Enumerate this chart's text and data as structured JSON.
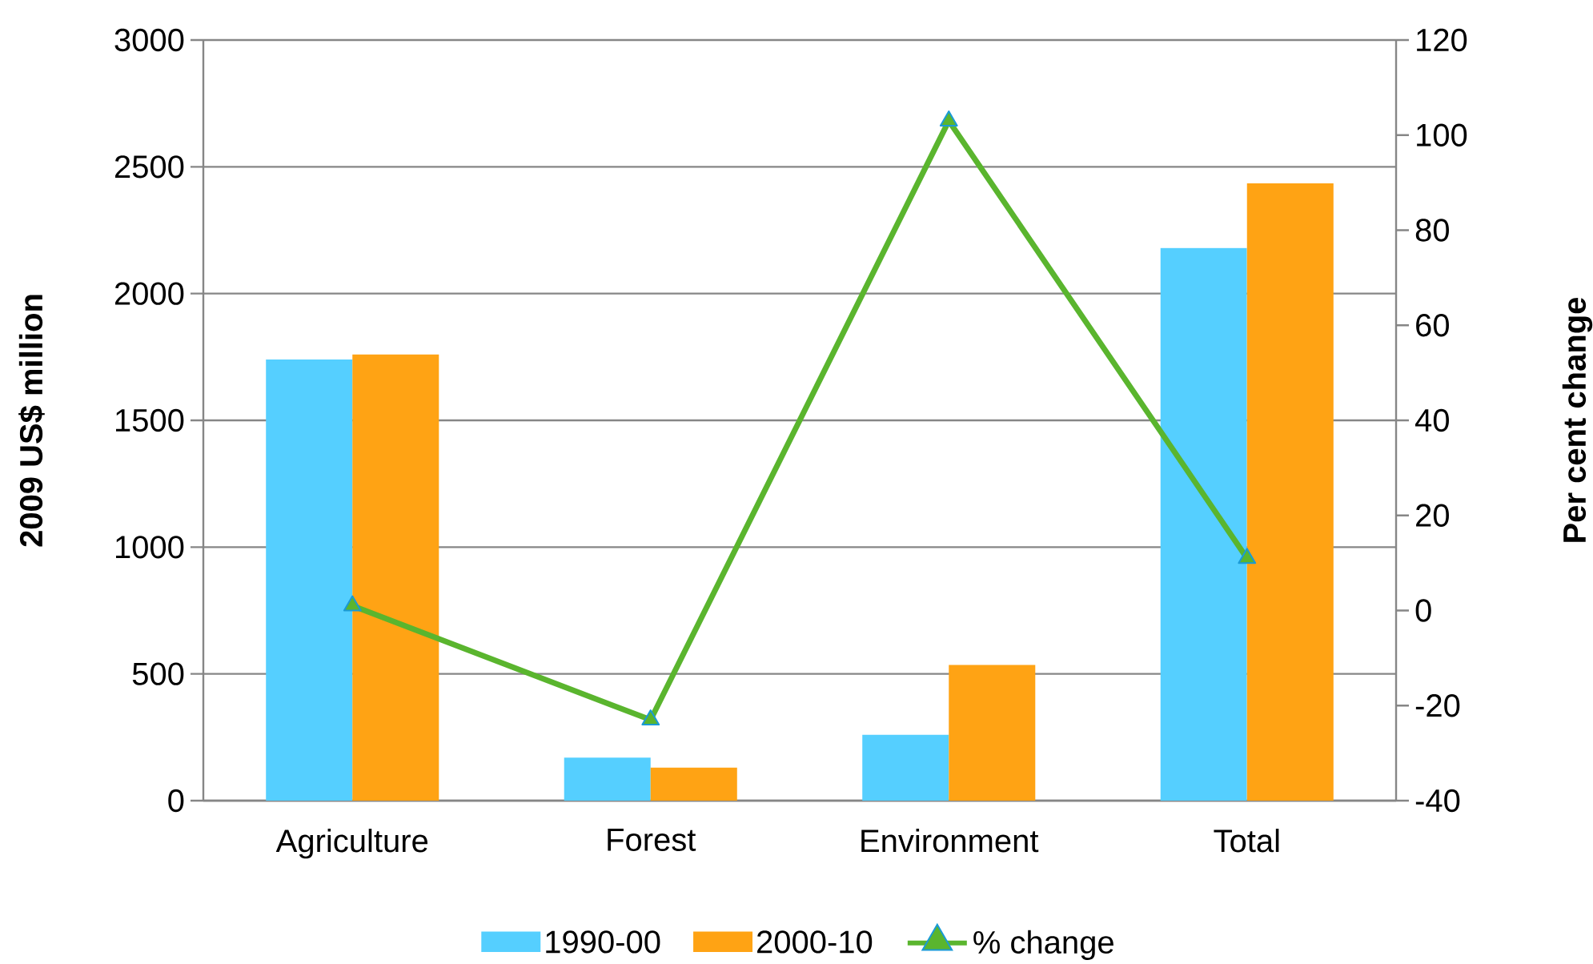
{
  "chart_data": {
    "type": "bar",
    "ylabel": "2009 US$ million",
    "y2label": "Per cent change",
    "categories": [
      "Agriculture",
      "Forest",
      "Environment",
      "Total"
    ],
    "series": [
      {
        "name": "1990-00",
        "color": "#55cfff",
        "values": [
          1740,
          170,
          260,
          2180
        ]
      },
      {
        "name": "2000-10",
        "color": "#ffa314",
        "values": [
          1760,
          130,
          535,
          2435
        ]
      },
      {
        "name": "% change",
        "type": "line",
        "axis": "y2",
        "color": "#5ab52e",
        "marker": "triangle",
        "values": [
          1,
          -23,
          103,
          11
        ]
      }
    ],
    "ylim": [
      0,
      3000
    ],
    "yticks": [
      0,
      500,
      1000,
      1500,
      2000,
      2500,
      3000
    ],
    "y2lim": [
      -40,
      120
    ],
    "y2ticks": [
      -40,
      -20,
      0,
      20,
      40,
      60,
      80,
      100,
      120
    ],
    "grid": "y",
    "legend": "bottom"
  }
}
